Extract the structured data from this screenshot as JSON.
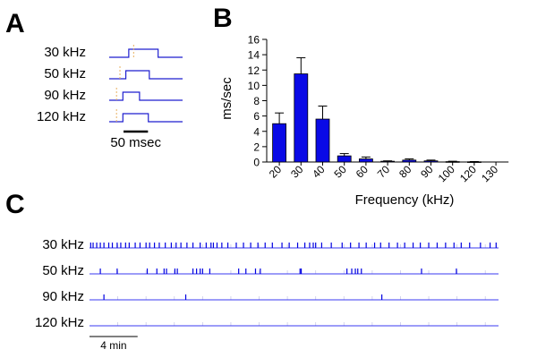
{
  "panels": {
    "a": "A",
    "b": "B",
    "c": "C"
  },
  "panel_a": {
    "rows": [
      {
        "label": "30 kHz",
        "onset_ms": 40,
        "offset_ms": 100,
        "marker_ms": 50
      },
      {
        "label": "50 kHz",
        "onset_ms": 34,
        "offset_ms": 82,
        "marker_ms": 22
      },
      {
        "label": "90 kHz",
        "onset_ms": 28,
        "offset_ms": 62,
        "marker_ms": 15
      },
      {
        "label": "120 kHz",
        "onset_ms": 28,
        "offset_ms": 80,
        "marker_ms": 15
      }
    ],
    "scale_label": "50 msec",
    "scale_ms": 50,
    "trace_ms": 150,
    "trace_color": "#1f1fcf",
    "marker_color": "#e8b060"
  },
  "chart_data": {
    "type": "bar",
    "categories": [
      "20",
      "30",
      "40",
      "50",
      "60",
      "70",
      "80",
      "90",
      "100",
      "120",
      "130"
    ],
    "values": [
      5.0,
      11.5,
      5.6,
      0.8,
      0.4,
      0.1,
      0.25,
      0.15,
      0.05,
      0.03,
      0.0
    ],
    "errors": [
      1.4,
      2.1,
      1.7,
      0.3,
      0.25,
      0.05,
      0.15,
      0.1,
      0.05,
      0.03,
      0.0
    ],
    "xlabel": "Frequency (kHz)",
    "ylabel": "ms/sec",
    "ylim": [
      0,
      16
    ],
    "yticks": [
      0,
      2,
      4,
      6,
      8,
      10,
      12,
      14,
      16
    ],
    "bar_color": "#0a0ae6",
    "grid": false
  },
  "panel_c": {
    "duration_min": 34,
    "scale_min": 4,
    "scale_label": "4 min",
    "tick_interval_min": 2.35,
    "trace_color": "#3a3af0",
    "rows": [
      {
        "label": "30 kHz",
        "events_min": [
          0.1,
          0.3,
          0.6,
          0.9,
          1.2,
          1.6,
          1.9,
          2.3,
          2.6,
          3.0,
          3.3,
          3.8,
          4.2,
          4.7,
          5.0,
          5.4,
          5.8,
          6.3,
          6.8,
          7.2,
          7.6,
          8.1,
          8.6,
          9.2,
          9.7,
          10.1,
          10.3,
          10.6,
          11.0,
          11.5,
          12.2,
          12.8,
          13.4,
          14.0,
          14.6,
          15.2,
          16.0,
          16.6,
          17.3,
          17.9,
          18.3,
          18.6,
          18.8,
          19.3,
          20.1,
          21.0,
          21.7,
          22.4,
          23.0,
          23.7,
          24.2,
          24.9,
          25.6,
          26.2,
          26.9,
          27.5,
          28.2,
          28.9,
          29.6,
          30.3,
          30.9,
          31.6,
          32.5,
          33.3,
          33.8
        ]
      },
      {
        "label": "50 kHz",
        "events_min": [
          0.9,
          2.3,
          4.8,
          5.6,
          6.2,
          6.4,
          7.1,
          7.3,
          8.6,
          8.9,
          9.2,
          9.4,
          10.0,
          12.4,
          13.0,
          13.8,
          14.2,
          17.5,
          17.6,
          21.4,
          21.8,
          22.1,
          22.3,
          22.6,
          27.6,
          30.5
        ]
      },
      {
        "label": "90 kHz",
        "events_min": [
          1.2,
          8.0,
          24.3
        ]
      },
      {
        "label": "120 kHz",
        "events_min": []
      }
    ]
  }
}
